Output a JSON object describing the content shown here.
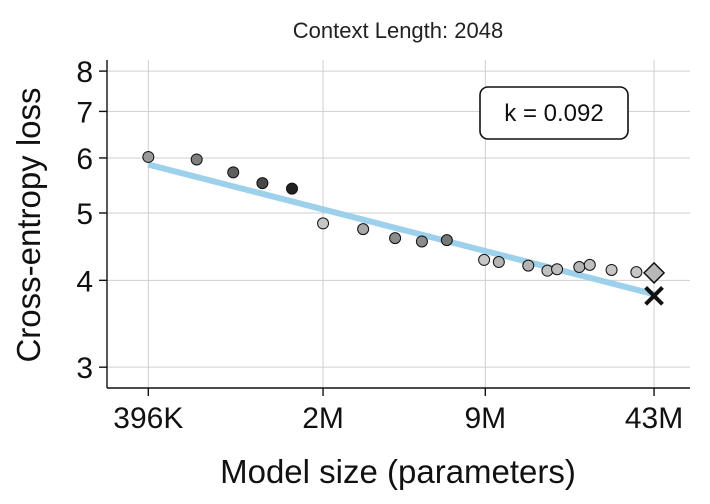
{
  "chart_data": {
    "type": "scatter",
    "title": "Context Length: 2048",
    "xlabel": "Model size (parameters)",
    "ylabel": "Cross-entropy loss",
    "x_scale": "log",
    "y_scale": "log",
    "xlim": [
      270000,
      60000000
    ],
    "ylim": [
      2.8,
      8.3
    ],
    "x_ticks": [
      {
        "value": 396000,
        "label": "396K"
      },
      {
        "value": 2000000,
        "label": "2M"
      },
      {
        "value": 9000000,
        "label": "9M"
      },
      {
        "value": 43000000,
        "label": "43M"
      }
    ],
    "y_ticks": [
      {
        "value": 3,
        "label": "3"
      },
      {
        "value": 4,
        "label": "4"
      },
      {
        "value": 5,
        "label": "5"
      },
      {
        "value": 6,
        "label": "6"
      },
      {
        "value": 7,
        "label": "7"
      },
      {
        "value": 8,
        "label": "8"
      }
    ],
    "grid": true,
    "points": [
      {
        "x": 396000,
        "y": 6.02,
        "color": "#9a9a9a"
      },
      {
        "x": 620000,
        "y": 5.97,
        "color": "#7f7f7f"
      },
      {
        "x": 870000,
        "y": 5.72,
        "color": "#5e5e5e"
      },
      {
        "x": 1140000,
        "y": 5.52,
        "color": "#484848"
      },
      {
        "x": 1500000,
        "y": 5.42,
        "color": "#222222"
      },
      {
        "x": 2000000,
        "y": 4.83,
        "color": "#c6c6c6"
      },
      {
        "x": 2900000,
        "y": 4.74,
        "color": "#a8a8a8"
      },
      {
        "x": 3900000,
        "y": 4.6,
        "color": "#8c8c8c"
      },
      {
        "x": 5000000,
        "y": 4.55,
        "color": "#8c8c8c"
      },
      {
        "x": 6300000,
        "y": 4.57,
        "color": "#777777"
      },
      {
        "x": 8900000,
        "y": 4.28,
        "color": "#c6c6c6"
      },
      {
        "x": 10200000,
        "y": 4.25,
        "color": "#b4b4b4"
      },
      {
        "x": 13400000,
        "y": 4.2,
        "color": "#b4b4b4"
      },
      {
        "x": 16000000,
        "y": 4.13,
        "color": "#c0c0c0"
      },
      {
        "x": 17500000,
        "y": 4.15,
        "color": "#bdbdbd"
      },
      {
        "x": 21500000,
        "y": 4.18,
        "color": "#b5b5b5"
      },
      {
        "x": 23700000,
        "y": 4.21,
        "color": "#c0c0c0"
      },
      {
        "x": 29000000,
        "y": 4.14,
        "color": "#c6c6c6"
      },
      {
        "x": 36500000,
        "y": 4.11,
        "color": "#c6c6c6"
      }
    ],
    "special_points": [
      {
        "x": 43000000,
        "y": 4.1,
        "marker": "diamond",
        "color": "#b8b8b8"
      },
      {
        "x": 43000000,
        "y": 3.8,
        "marker": "x",
        "color": "#111111"
      }
    ],
    "fit_line": {
      "x": [
        396000,
        43000000
      ],
      "y": [
        5.87,
        3.82
      ],
      "color": "#9dd0ea"
    },
    "annotation": {
      "text": "k = 0.092",
      "position": "top-right"
    }
  }
}
